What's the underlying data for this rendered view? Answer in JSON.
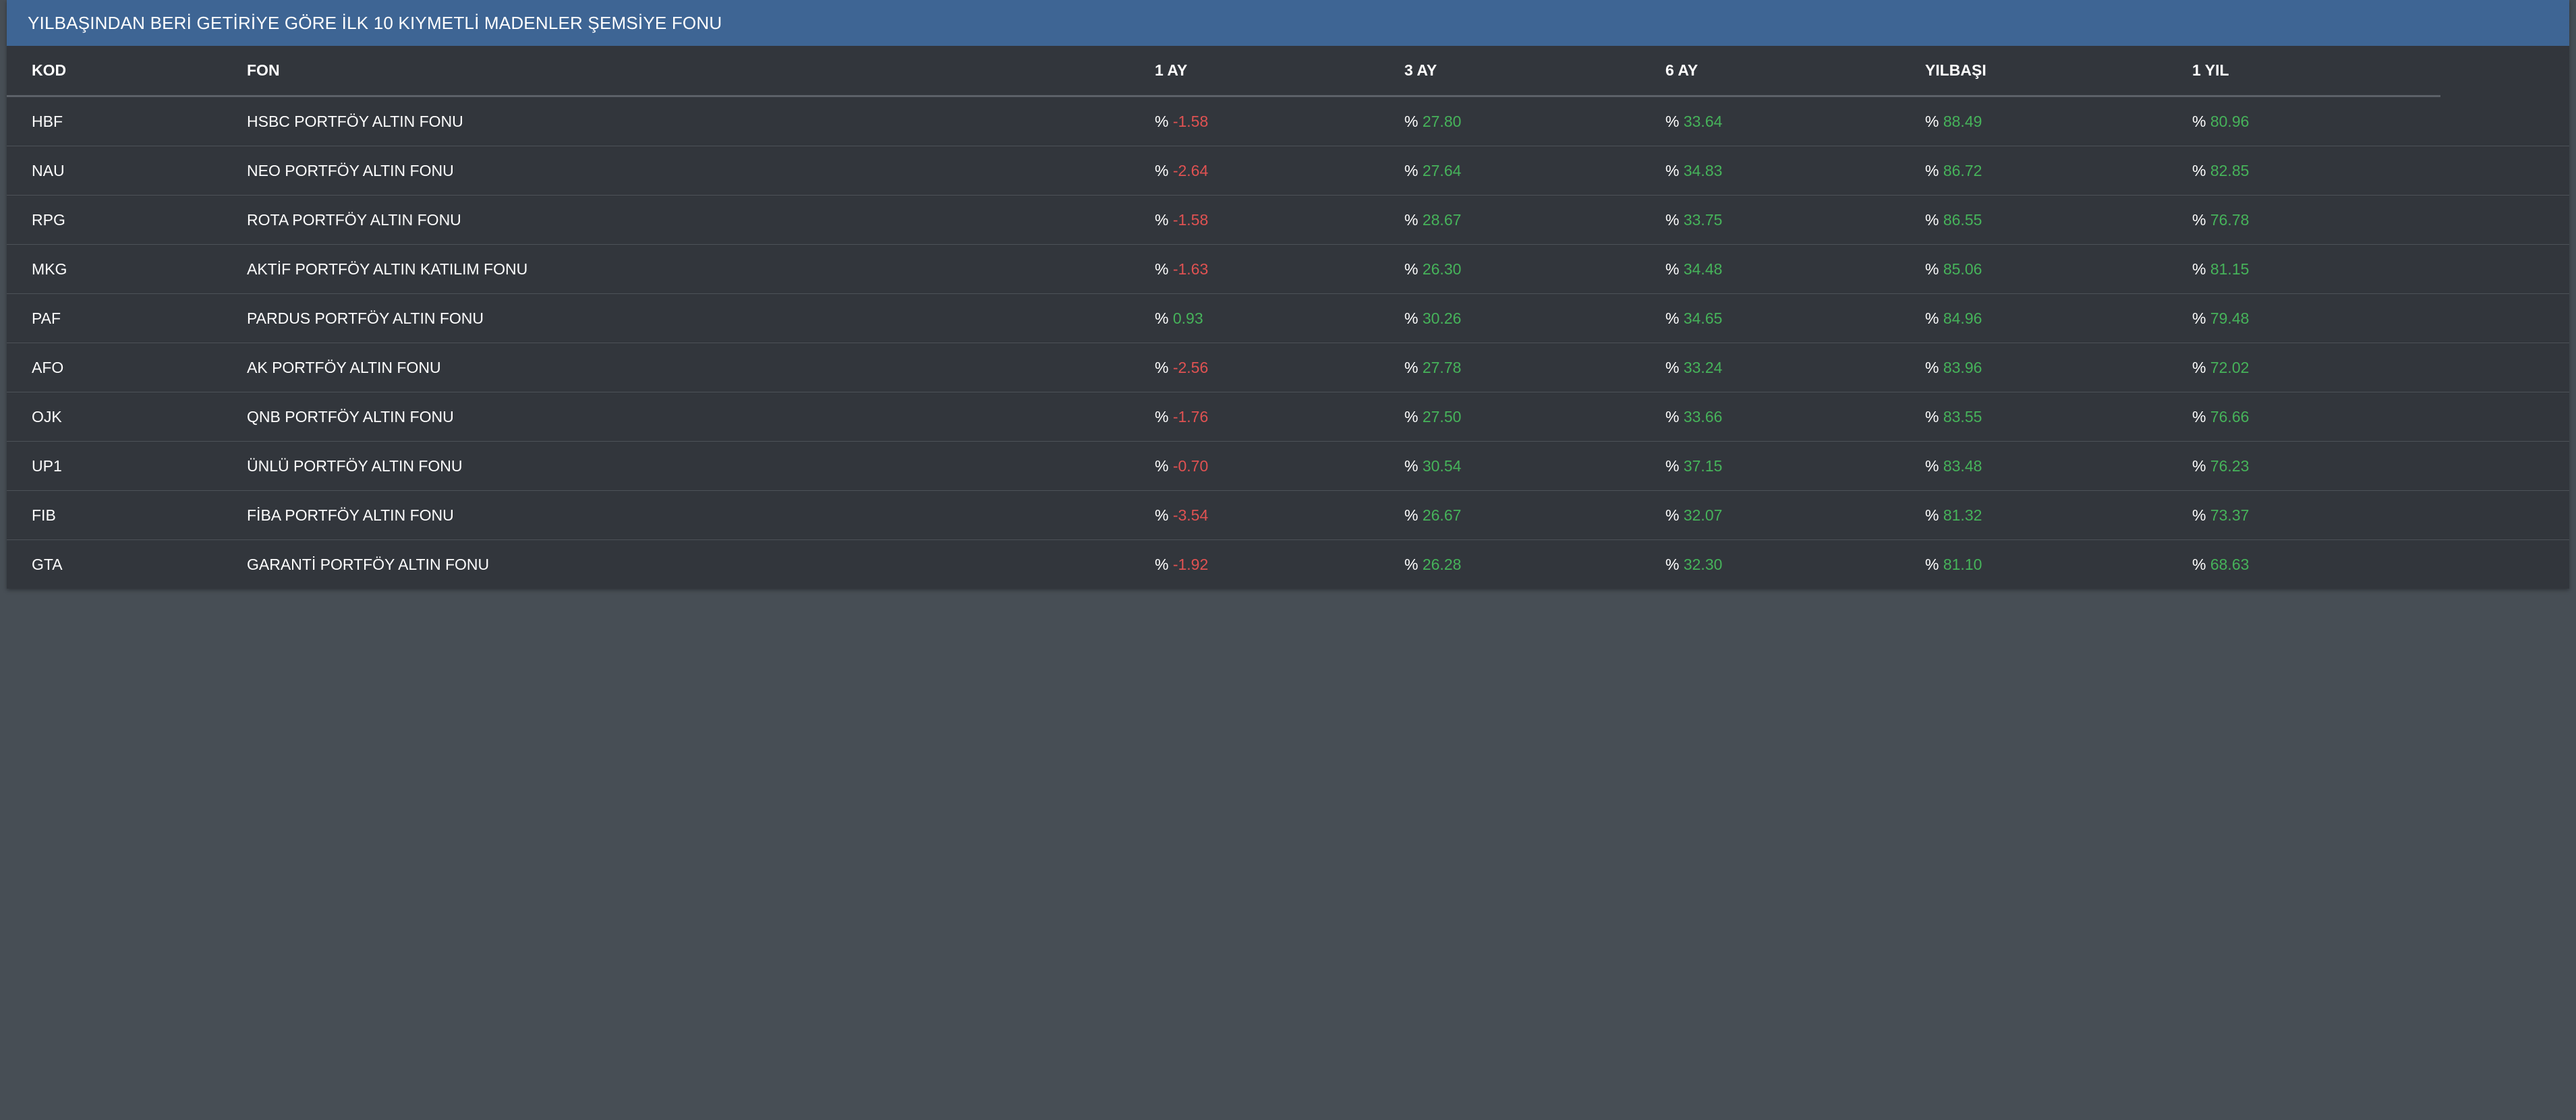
{
  "panel": {
    "title": "YILBAŞINDAN BERİ GETİRİYE GÖRE İLK 10 KIYMETLİ MADENLER ŞEMSİYE FONU"
  },
  "table": {
    "columns": [
      "KOD",
      "FON",
      "1 AY",
      "3 AY",
      "6 AY",
      "YILBAŞI",
      "1 YIL"
    ],
    "percent_sign": "%",
    "colors": {
      "positive": "#46b35a",
      "negative": "#e05252",
      "header_bg": "#3e6594",
      "panel_bg": "#32363c",
      "page_bg": "#474e55"
    },
    "rows": [
      {
        "code": "HBF",
        "fund": "HSBC PORTFÖY ALTIN FONU",
        "m1": "-1.58",
        "m3": "27.80",
        "m6": "33.64",
        "ytd": "88.49",
        "y1": "80.96"
      },
      {
        "code": "NAU",
        "fund": "NEO PORTFÖY ALTIN FONU",
        "m1": "-2.64",
        "m3": "27.64",
        "m6": "34.83",
        "ytd": "86.72",
        "y1": "82.85"
      },
      {
        "code": "RPG",
        "fund": "ROTA PORTFÖY ALTIN FONU",
        "m1": "-1.58",
        "m3": "28.67",
        "m6": "33.75",
        "ytd": "86.55",
        "y1": "76.78"
      },
      {
        "code": "MKG",
        "fund": "AKTİF PORTFÖY ALTIN KATILIM FONU",
        "m1": "-1.63",
        "m3": "26.30",
        "m6": "34.48",
        "ytd": "85.06",
        "y1": "81.15"
      },
      {
        "code": "PAF",
        "fund": "PARDUS PORTFÖY ALTIN FONU",
        "m1": "0.93",
        "m3": "30.26",
        "m6": "34.65",
        "ytd": "84.96",
        "y1": "79.48"
      },
      {
        "code": "AFO",
        "fund": "AK PORTFÖY ALTIN FONU",
        "m1": "-2.56",
        "m3": "27.78",
        "m6": "33.24",
        "ytd": "83.96",
        "y1": "72.02"
      },
      {
        "code": "OJK",
        "fund": "QNB PORTFÖY ALTIN FONU",
        "m1": "-1.76",
        "m3": "27.50",
        "m6": "33.66",
        "ytd": "83.55",
        "y1": "76.66"
      },
      {
        "code": "UP1",
        "fund": "ÜNLÜ PORTFÖY ALTIN FONU",
        "m1": "-0.70",
        "m3": "30.54",
        "m6": "37.15",
        "ytd": "83.48",
        "y1": "76.23"
      },
      {
        "code": "FIB",
        "fund": "FİBA PORTFÖY ALTIN FONU",
        "m1": "-3.54",
        "m3": "26.67",
        "m6": "32.07",
        "ytd": "81.32",
        "y1": "73.37"
      },
      {
        "code": "GTA",
        "fund": "GARANTİ PORTFÖY ALTIN FONU",
        "m1": "-1.92",
        "m3": "26.28",
        "m6": "32.30",
        "ytd": "81.10",
        "y1": "68.63"
      }
    ]
  }
}
